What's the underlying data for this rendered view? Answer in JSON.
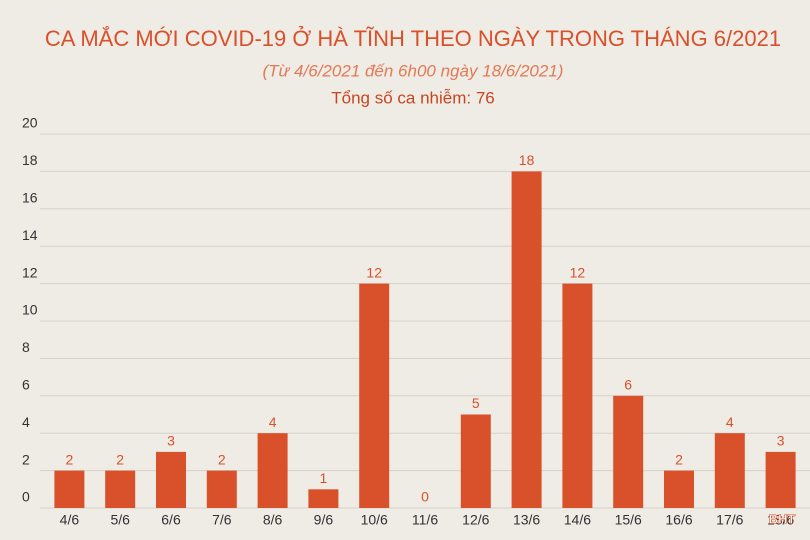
{
  "chart_data": {
    "type": "bar",
    "title": "CA MẮC MỚI COVID-19 Ở HÀ TĨNH THEO NGÀY TRONG THÁNG 6/2021",
    "subtitle": "(Từ 4/6/2021 đến 6h00 ngày 18/6/2021)",
    "annotation": "Tổng số ca nhiễm: 76",
    "categories": [
      "4/6",
      "5/6",
      "6/6",
      "7/6",
      "8/6",
      "9/6",
      "10/6",
      "11/6",
      "12/6",
      "13/6",
      "14/6",
      "15/6",
      "16/6",
      "17/6",
      "18/6"
    ],
    "values": [
      2,
      2,
      3,
      2,
      4,
      1,
      12,
      0,
      5,
      18,
      12,
      6,
      2,
      4,
      3
    ],
    "color": "#d9512b",
    "ylim": [
      0,
      20
    ],
    "yticks": [
      0,
      2,
      4,
      6,
      8,
      10,
      12,
      14,
      16,
      18,
      20
    ],
    "grid": true,
    "watermark": "BHT"
  }
}
